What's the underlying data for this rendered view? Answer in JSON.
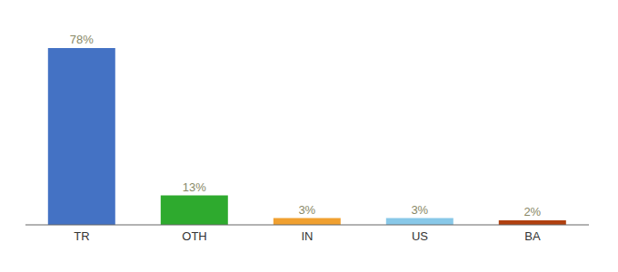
{
  "chart_data": {
    "type": "bar",
    "categories": [
      "TR",
      "OTH",
      "IN",
      "US",
      "BA"
    ],
    "values": [
      78,
      13,
      3,
      3,
      2
    ],
    "value_labels": [
      "78%",
      "13%",
      "3%",
      "3%",
      "2%"
    ],
    "colors": [
      "#4472c4",
      "#2eaa2e",
      "#f0a030",
      "#88c8e8",
      "#b04010"
    ],
    "ylim": [
      0,
      88
    ],
    "data_labels": true,
    "tick_labels": "x",
    "grid": false
  }
}
